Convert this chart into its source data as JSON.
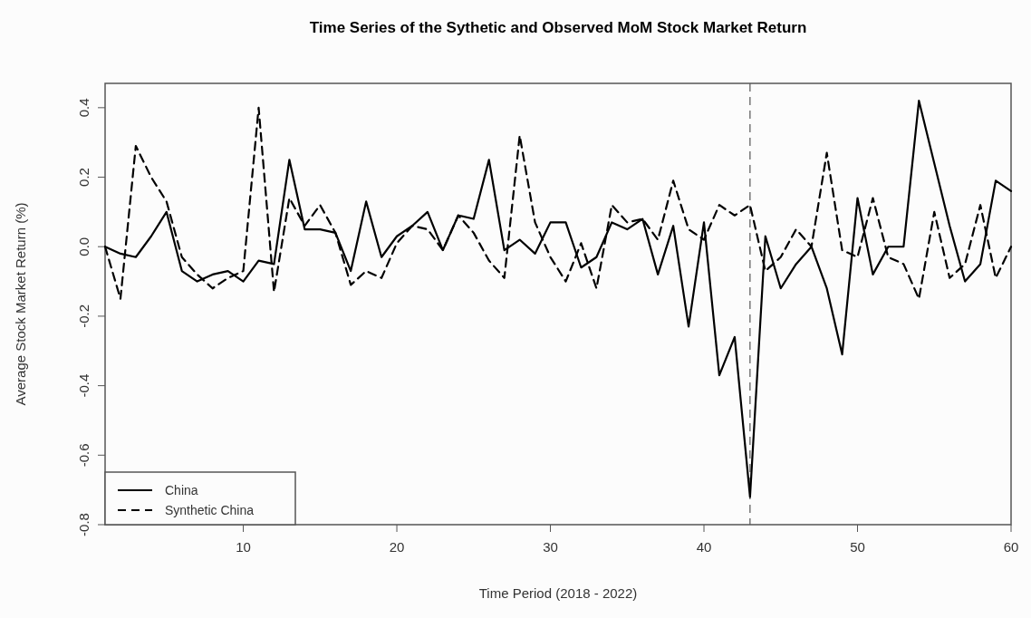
{
  "chart_data": {
    "type": "line",
    "title": "Time Series of the Sythetic and Observed MoM Stock Market Return",
    "xlabel": "Time Period (2018 - 2022)",
    "ylabel": "Average Stock Market Return (%)",
    "x": [
      1,
      2,
      3,
      4,
      5,
      6,
      7,
      8,
      9,
      10,
      11,
      12,
      13,
      14,
      15,
      16,
      17,
      18,
      19,
      20,
      21,
      22,
      23,
      24,
      25,
      26,
      27,
      28,
      29,
      30,
      31,
      32,
      33,
      34,
      35,
      36,
      37,
      38,
      39,
      40,
      41,
      42,
      43,
      44,
      45,
      46,
      47,
      48,
      49,
      50,
      51,
      52,
      53,
      54,
      55,
      56,
      57,
      58,
      59,
      60
    ],
    "series": [
      {
        "name": "China",
        "color": "#000000",
        "line_style": "solid",
        "values": [
          0.0,
          -0.02,
          -0.03,
          0.03,
          0.1,
          -0.07,
          -0.1,
          -0.08,
          -0.07,
          -0.1,
          -0.04,
          -0.05,
          0.25,
          0.05,
          0.05,
          0.04,
          -0.07,
          0.13,
          -0.03,
          0.03,
          0.06,
          0.1,
          -0.01,
          0.09,
          0.08,
          0.25,
          -0.01,
          0.02,
          -0.02,
          0.07,
          0.07,
          -0.06,
          -0.03,
          0.07,
          0.05,
          0.08,
          -0.08,
          0.06,
          -0.23,
          0.07,
          -0.37,
          -0.26,
          -0.72,
          0.03,
          -0.12,
          -0.05,
          0.0,
          -0.12,
          -0.31,
          0.14,
          -0.08,
          0.0,
          0.0,
          0.42,
          0.24,
          0.06,
          -0.1,
          -0.05,
          0.19,
          0.16
        ]
      },
      {
        "name": "Synthetic China",
        "color": "#000000",
        "line_style": "dashed",
        "values": [
          0.0,
          -0.15,
          0.29,
          0.2,
          0.13,
          -0.03,
          -0.08,
          -0.12,
          -0.09,
          -0.07,
          0.4,
          -0.13,
          0.14,
          0.06,
          0.12,
          0.04,
          -0.11,
          -0.07,
          -0.09,
          0.01,
          0.06,
          0.05,
          -0.01,
          0.09,
          0.04,
          -0.04,
          -0.09,
          0.32,
          0.07,
          -0.03,
          -0.1,
          0.01,
          -0.12,
          0.12,
          0.07,
          0.08,
          0.02,
          0.19,
          0.05,
          0.02,
          0.12,
          0.09,
          0.12,
          -0.07,
          -0.03,
          0.05,
          0.0,
          0.27,
          -0.01,
          -0.03,
          0.14,
          -0.03,
          -0.05,
          -0.15,
          0.1,
          -0.09,
          -0.05,
          0.12,
          -0.09,
          0.0
        ]
      }
    ],
    "xlim": [
      1,
      60
    ],
    "xticks": [
      10,
      20,
      30,
      40,
      50,
      60
    ],
    "ylim": [
      -0.8,
      0.47
    ],
    "yticks": [
      {
        "value": -0.8,
        "label": "-0.8"
      },
      {
        "value": -0.6,
        "label": "-0.6"
      },
      {
        "value": -0.4,
        "label": "-0.4"
      },
      {
        "value": -0.2,
        "label": "-0.2"
      },
      {
        "value": 0,
        "label": "0.0"
      },
      {
        "value": 0.2,
        "label": "0.2"
      },
      {
        "value": 0.4,
        "label": "0.4"
      }
    ],
    "ref_lines": [
      {
        "axis": "x",
        "value": 43,
        "line_style": "dashed",
        "color": "#555555"
      }
    ],
    "legend": "bottom left",
    "grid": false
  }
}
